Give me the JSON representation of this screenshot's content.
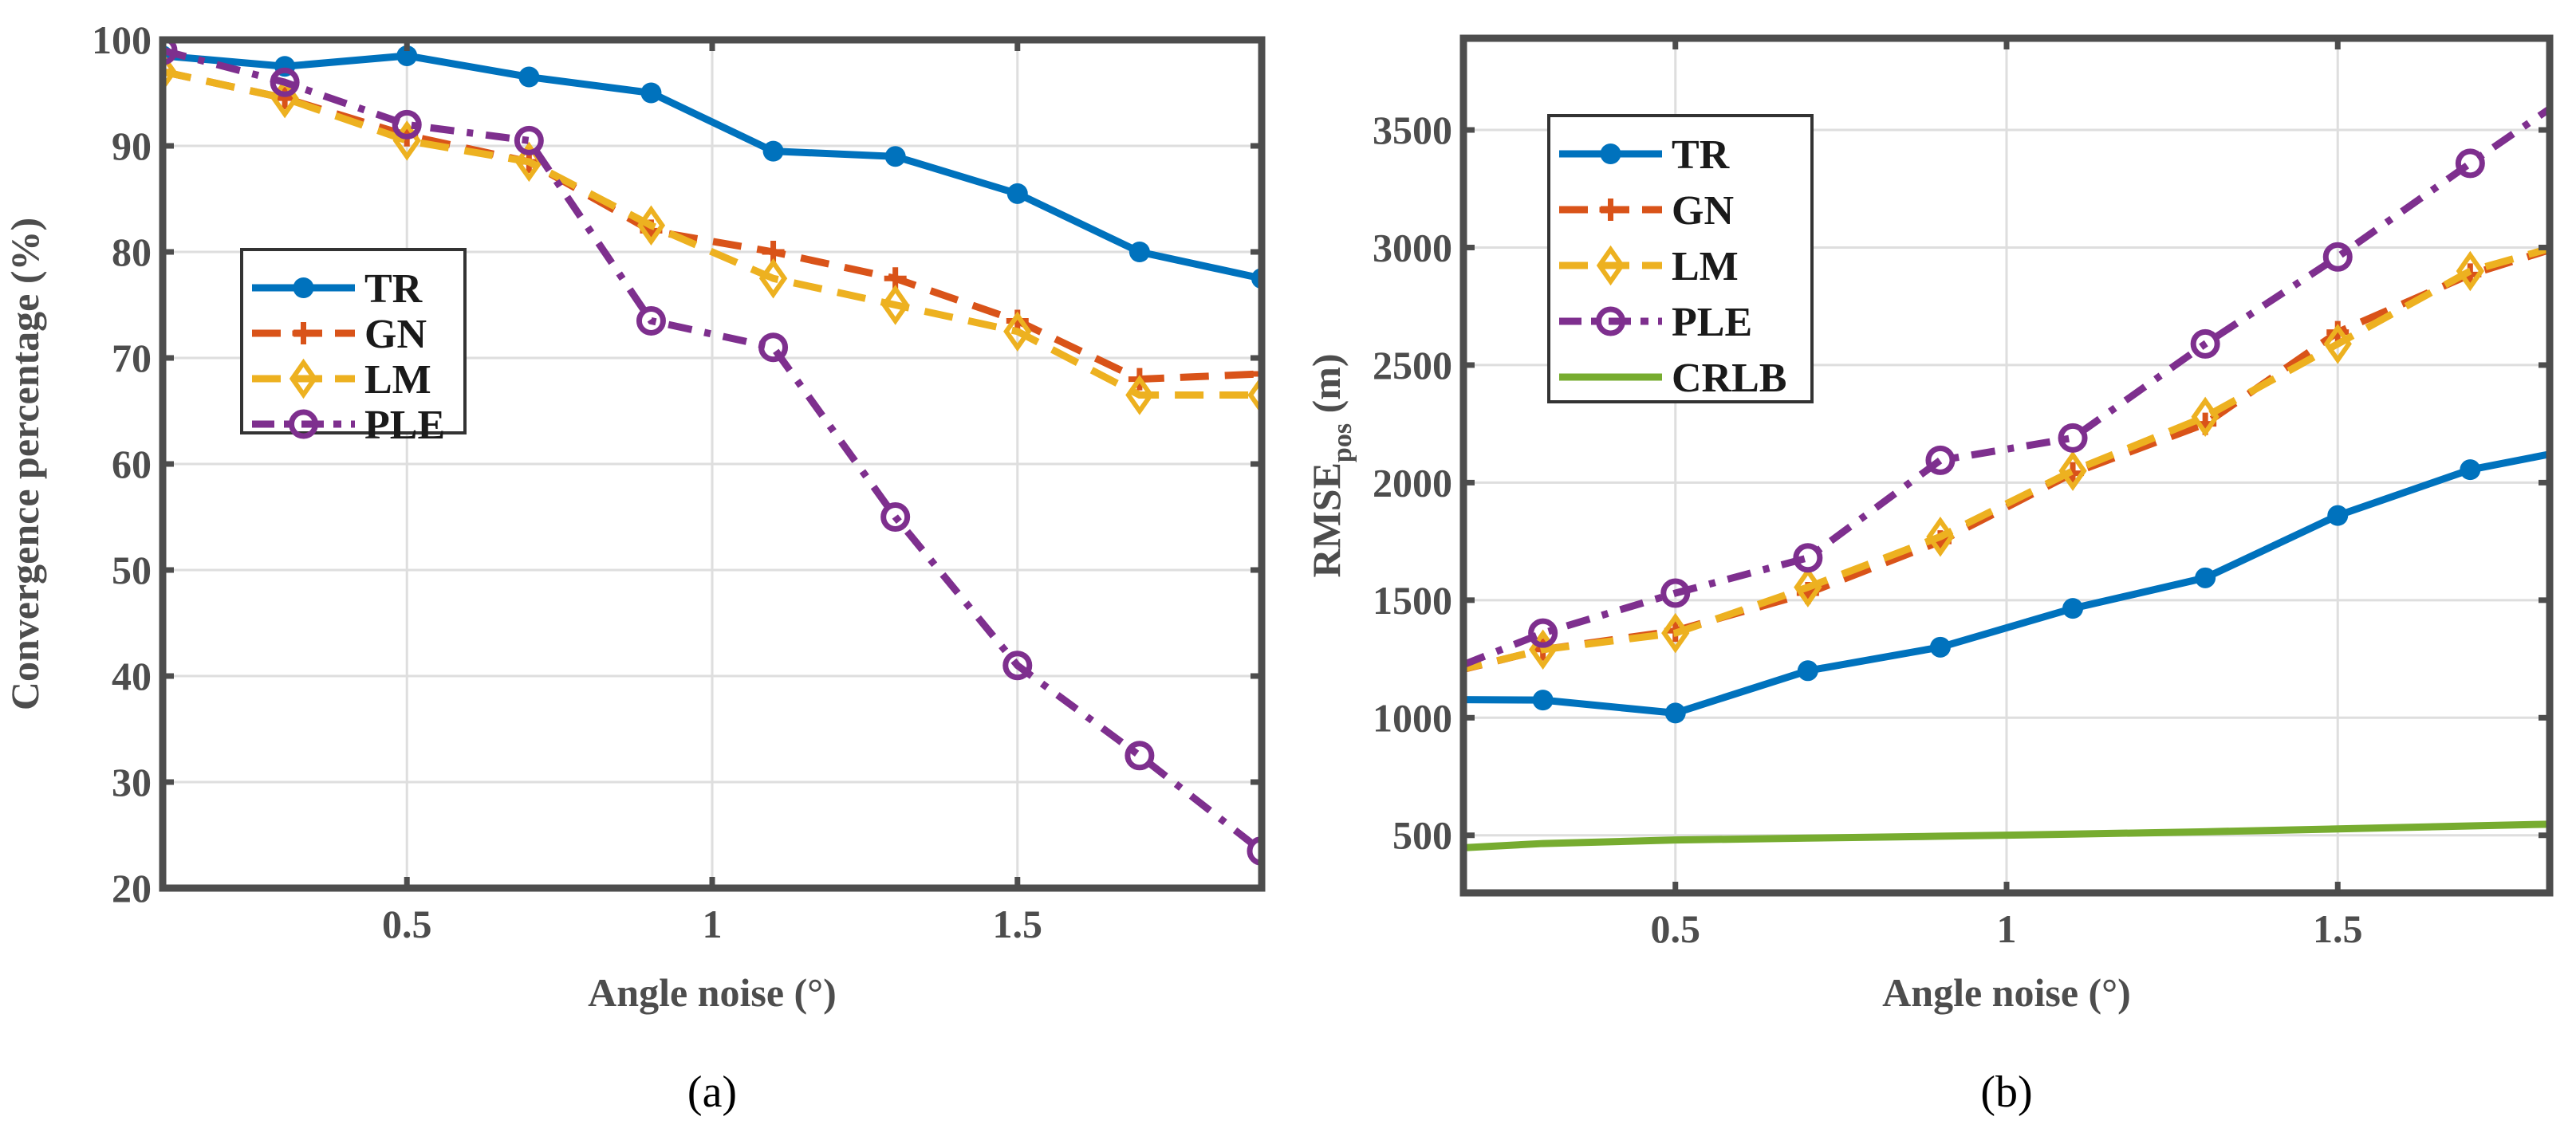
{
  "chart_data": [
    {
      "type": "line",
      "caption": "(a)",
      "xlabel": "Angle noise (°)",
      "ylabel": "Convergence percentage (%)",
      "xlim": [
        0.1,
        1.9
      ],
      "ylim": [
        20,
        100
      ],
      "xticks": [
        0.5,
        1,
        1.5
      ],
      "xtick_labels": [
        "0.5",
        "1",
        "1.5"
      ],
      "yticks": [
        20,
        30,
        40,
        50,
        60,
        70,
        80,
        90,
        100
      ],
      "ytick_labels": [
        "20",
        "30",
        "40",
        "50",
        "60",
        "70",
        "80",
        "90",
        "100"
      ],
      "grid": true,
      "legend_position": "center-left",
      "x": [
        0.1,
        0.3,
        0.5,
        0.7,
        0.9,
        1.1,
        1.3,
        1.5,
        1.7,
        1.9
      ],
      "series": [
        {
          "name": "TR",
          "color": "#0072BD",
          "style": "solid",
          "marker": "dot",
          "values": [
            98.5,
            97.5,
            98.5,
            96.5,
            95,
            89.5,
            89,
            85.5,
            80,
            77.5
          ]
        },
        {
          "name": "GN",
          "color": "#D95319",
          "style": "dash",
          "marker": "plus",
          "values": [
            97,
            94.5,
            91,
            88.5,
            82,
            80,
            77.5,
            73.5,
            68,
            68.5
          ]
        },
        {
          "name": "LM",
          "color": "#EDB120",
          "style": "dash",
          "marker": "diamond",
          "values": [
            97,
            94.5,
            90.5,
            88.5,
            82.5,
            77.5,
            75,
            72.5,
            66.5,
            66.5
          ]
        },
        {
          "name": "PLE",
          "color": "#7E2F8E",
          "style": "dashdot",
          "marker": "circle",
          "values": [
            99,
            96,
            92,
            90.5,
            73.5,
            71,
            55,
            41,
            32.5,
            23.5
          ]
        }
      ]
    },
    {
      "type": "line",
      "caption": "(b)",
      "xlabel": "Angle noise (°)",
      "ylabel": "RMSE",
      "ylabel_sub": "pos",
      "ylabel_unit": " (m)",
      "xlim": [
        0.18,
        1.82
      ],
      "ylim": [
        255,
        3890
      ],
      "xticks": [
        0.5,
        1,
        1.5
      ],
      "xtick_labels": [
        "0.5",
        "1",
        "1.5"
      ],
      "yticks": [
        500,
        1000,
        1500,
        2000,
        2500,
        3000,
        3500
      ],
      "ytick_labels": [
        "500",
        "1000",
        "1500",
        "2000",
        "2500",
        "3000",
        "3500"
      ],
      "grid": true,
      "legend_position": "top-left",
      "x": [
        0.1,
        0.3,
        0.5,
        0.7,
        0.9,
        1.1,
        1.3,
        1.5,
        1.7,
        1.9
      ],
      "series": [
        {
          "name": "TR",
          "color": "#0072BD",
          "style": "solid",
          "marker": "dot",
          "values": [
            1078,
            1075,
            1020,
            1200,
            1300,
            1465,
            1595,
            1860,
            2055,
            2165
          ]
        },
        {
          "name": "GN",
          "color": "#D95319",
          "style": "dash",
          "marker": "plus",
          "values": [
            1150,
            1290,
            1370,
            1530,
            1750,
            2040,
            2250,
            2640,
            2885,
            3060
          ]
        },
        {
          "name": "LM",
          "color": "#EDB120",
          "style": "dash",
          "marker": "diamond",
          "values": [
            1153,
            1290,
            1360,
            1555,
            1770,
            2050,
            2280,
            2590,
            2900,
            3060
          ]
        },
        {
          "name": "PLE",
          "color": "#7E2F8E",
          "style": "dashdot",
          "marker": "circle",
          "values": [
            1136,
            1360,
            1530,
            1680,
            2095,
            2190,
            2590,
            2960,
            3358,
            3745
          ]
        },
        {
          "name": "CRLB",
          "color": "#77AC30",
          "style": "solid",
          "marker": "none",
          "values": [
            435,
            465,
            480,
            488,
            496,
            505,
            515,
            527,
            540,
            552
          ]
        }
      ]
    }
  ]
}
